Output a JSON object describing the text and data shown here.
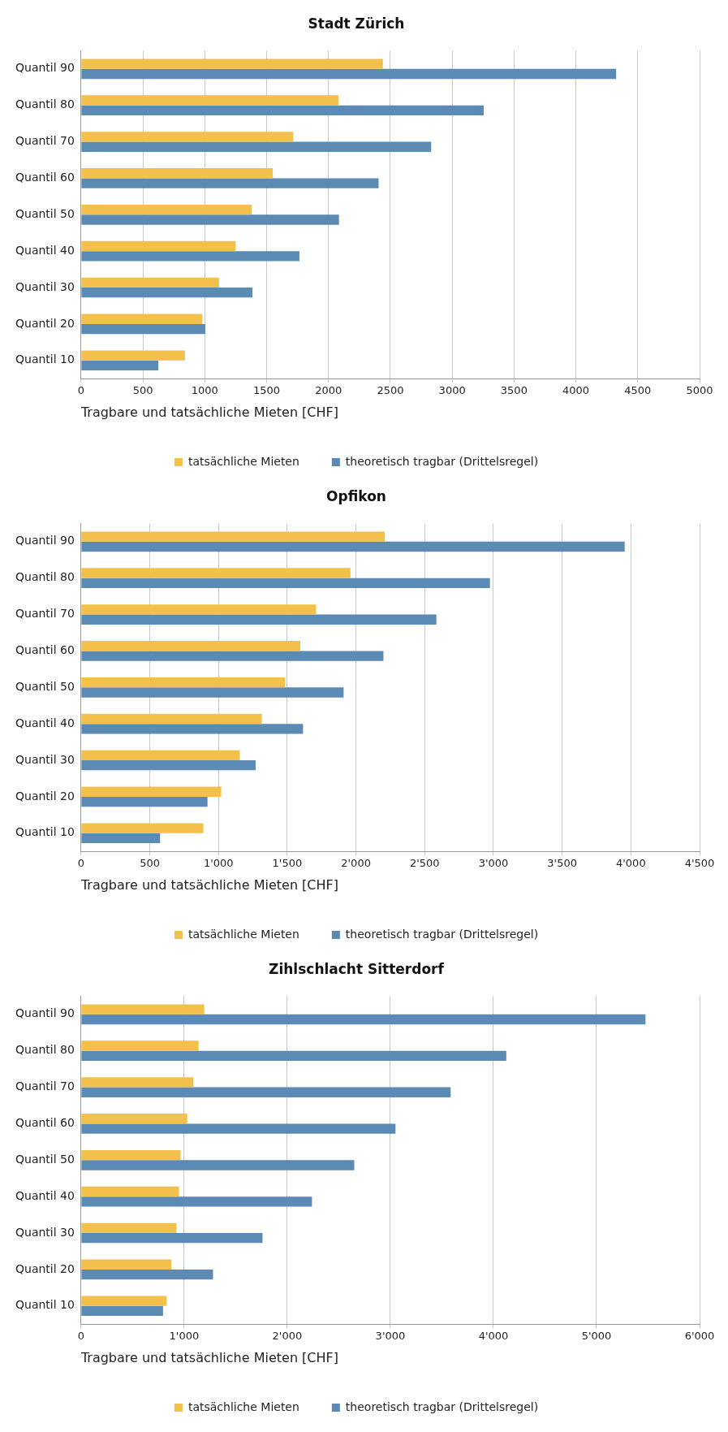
{
  "chart_data": [
    {
      "type": "bar",
      "orientation": "horizontal",
      "title": "Stadt Zürich",
      "xlabel": "Tragbare und tatsächliche Mieten [CHF]",
      "categories": [
        "Quantil 90",
        "Quantil 80",
        "Quantil 70",
        "Quantil 60",
        "Quantil 50",
        "Quantil 40",
        "Quantil 30",
        "Quantil 20",
        "Quantil 10"
      ],
      "series": [
        {
          "name": "tatsächliche Mieten",
          "color": "#f2c04b",
          "values": [
            2440,
            2080,
            1715,
            1550,
            1380,
            1250,
            1115,
            980,
            840
          ]
        },
        {
          "name": "theoretisch tragbar (Drittelsregel)",
          "color": "#5b8ab5",
          "values": [
            4325,
            3255,
            2830,
            2405,
            2085,
            1765,
            1385,
            1005,
            625
          ]
        }
      ],
      "xlim": [
        0,
        5000
      ],
      "xticks": [
        0,
        500,
        1000,
        1500,
        2000,
        2500,
        3000,
        3500,
        4000,
        4500,
        5000
      ],
      "grid": "x",
      "legend": "bottom"
    },
    {
      "type": "bar",
      "orientation": "horizontal",
      "title": "Opfikon",
      "xlabel": "Tragbare und tatsächliche Mieten [CHF]",
      "categories": [
        "Quantil 90",
        "Quantil 80",
        "Quantil 70",
        "Quantil 60",
        "Quantil 50",
        "Quantil 40",
        "Quantil 30",
        "Quantil 20",
        "Quantil 10"
      ],
      "series": [
        {
          "name": "tatsächliche Mieten",
          "color": "#f2c04b",
          "values": [
            2210,
            1960,
            1710,
            1595,
            1485,
            1315,
            1155,
            1020,
            890
          ]
        },
        {
          "name": "theoretisch tragbar (Drittelsregel)",
          "color": "#5b8ab5",
          "values": [
            3955,
            2975,
            2585,
            2200,
            1910,
            1615,
            1270,
            920,
            575
          ]
        }
      ],
      "xlim": [
        0,
        4500
      ],
      "xticks": [
        0,
        500,
        {
          "value": 1000,
          "label": "1'000"
        },
        {
          "value": 1500,
          "label": "1'500"
        },
        {
          "value": 2000,
          "label": "2'000"
        },
        {
          "value": 2500,
          "label": "2'500"
        },
        {
          "value": 3000,
          "label": "3'000"
        },
        {
          "value": 3500,
          "label": "3'500"
        },
        {
          "value": 4000,
          "label": "4'000"
        },
        {
          "value": 4500,
          "label": "4'500"
        }
      ],
      "grid": "x",
      "legend": "bottom"
    },
    {
      "type": "bar",
      "orientation": "horizontal",
      "title": "Zihlschlacht Sitterdorf",
      "xlabel": "Tragbare und tatsächliche Mieten [CHF]",
      "categories": [
        "Quantil 90",
        "Quantil 80",
        "Quantil 70",
        "Quantil 60",
        "Quantil 50",
        "Quantil 40",
        "Quantil 30",
        "Quantil 20",
        "Quantil 10"
      ],
      "series": [
        {
          "name": "tatsächliche Mieten",
          "color": "#f2c04b",
          "values": [
            1195,
            1140,
            1090,
            1030,
            965,
            950,
            925,
            875,
            830
          ]
        },
        {
          "name": "theoretisch tragbar (Drittelsregel)",
          "color": "#5b8ab5",
          "values": [
            5475,
            4125,
            3585,
            3050,
            2650,
            2240,
            1760,
            1280,
            795
          ]
        }
      ],
      "xlim": [
        0,
        6000
      ],
      "xticks": [
        0,
        {
          "value": 1000,
          "label": "1'000"
        },
        {
          "value": 2000,
          "label": "2'000"
        },
        {
          "value": 3000,
          "label": "3'000"
        },
        {
          "value": 4000,
          "label": "4'000"
        },
        {
          "value": 5000,
          "label": "5'000"
        },
        {
          "value": 6000,
          "label": "6'000"
        }
      ],
      "grid": "x",
      "legend": "bottom"
    }
  ]
}
